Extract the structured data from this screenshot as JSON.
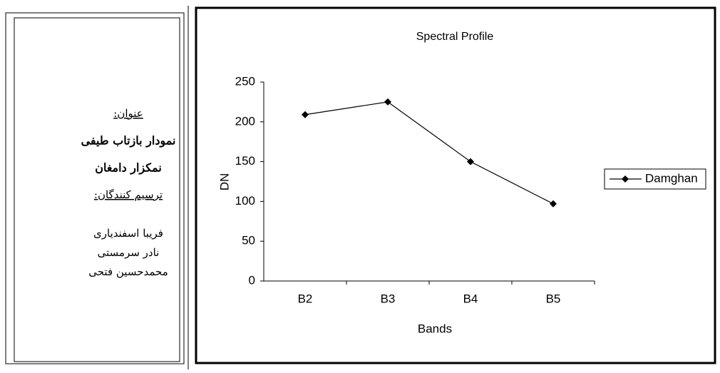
{
  "sidebar": {
    "title_label": "عنوان:",
    "title_lines": [
      "نمودار بازتاب طیفی",
      "نمکزار دامغان"
    ],
    "authors_label": "ترسیم کنندگان:",
    "authors": [
      "فریبا اسفندیاری",
      "نادر سرمستی",
      "محمدحسین فتحی"
    ]
  },
  "chart_data": {
    "type": "line",
    "title": "Spectral Profile",
    "x_label": "Bands",
    "y_label": "DN",
    "categories": [
      "B2",
      "B3",
      "B4",
      "B5"
    ],
    "series": [
      {
        "name": "Damghan",
        "color": "#000000",
        "values": [
          209,
          225,
          150,
          97
        ]
      }
    ],
    "ylim": [
      0,
      250
    ],
    "yticks": [
      0,
      50,
      100,
      150,
      200,
      250
    ],
    "grid": false,
    "legend": "right"
  }
}
